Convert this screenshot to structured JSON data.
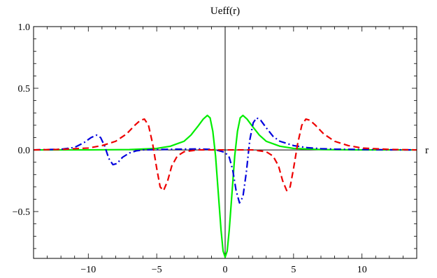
{
  "chart_data": {
    "type": "line",
    "title": "Ueff(r)",
    "xlabel": "r",
    "ylabel": "",
    "xlim": [
      -14,
      14
    ],
    "ylim": [
      -0.88,
      1.0
    ],
    "grid": false,
    "x_ticks": [
      {
        "value": -10,
        "label": "−10"
      },
      {
        "value": -5,
        "label": "−5"
      },
      {
        "value": 0,
        "label": "0"
      },
      {
        "value": 5,
        "label": "5"
      },
      {
        "value": 10,
        "label": "10"
      }
    ],
    "y_ticks": [
      {
        "value": -0.5,
        "label": "−0.5"
      },
      {
        "value": 0.0,
        "label": "0.0"
      },
      {
        "value": 0.5,
        "label": "0.5"
      },
      {
        "value": 1.0,
        "label": "1.0"
      }
    ],
    "series": [
      {
        "color": "#00ee00",
        "dash": "solid",
        "points": [
          [
            -14,
            0.0
          ],
          [
            -10,
            0.0
          ],
          [
            -7,
            0.003
          ],
          [
            -5,
            0.012
          ],
          [
            -4,
            0.03
          ],
          [
            -3,
            0.07
          ],
          [
            -2.5,
            0.12
          ],
          [
            -2,
            0.19
          ],
          [
            -1.6,
            0.25
          ],
          [
            -1.3,
            0.28
          ],
          [
            -1.1,
            0.26
          ],
          [
            -0.9,
            0.15
          ],
          [
            -0.7,
            -0.05
          ],
          [
            -0.5,
            -0.35
          ],
          [
            -0.3,
            -0.65
          ],
          [
            -0.15,
            -0.82
          ],
          [
            0,
            -0.87
          ],
          [
            0.15,
            -0.82
          ],
          [
            0.3,
            -0.65
          ],
          [
            0.5,
            -0.35
          ],
          [
            0.7,
            -0.05
          ],
          [
            0.9,
            0.15
          ],
          [
            1.1,
            0.26
          ],
          [
            1.3,
            0.28
          ],
          [
            1.6,
            0.25
          ],
          [
            2,
            0.19
          ],
          [
            2.5,
            0.12
          ],
          [
            3,
            0.07
          ],
          [
            4,
            0.03
          ],
          [
            5,
            0.012
          ],
          [
            7,
            0.003
          ],
          [
            10,
            0.0
          ],
          [
            14,
            0.0
          ]
        ]
      },
      {
        "color": "#0000dd",
        "dash": "dashdot",
        "points": [
          [
            -14,
            0.0
          ],
          [
            -12,
            0.005
          ],
          [
            -11,
            0.02
          ],
          [
            -10.3,
            0.06
          ],
          [
            -9.8,
            0.1
          ],
          [
            -9.4,
            0.12
          ],
          [
            -9.1,
            0.1
          ],
          [
            -8.8,
            0.03
          ],
          [
            -8.5,
            -0.07
          ],
          [
            -8.2,
            -0.12
          ],
          [
            -7.9,
            -0.11
          ],
          [
            -7.5,
            -0.06
          ],
          [
            -7,
            -0.025
          ],
          [
            -6.5,
            -0.008
          ],
          [
            -6,
            0.0
          ],
          [
            -4,
            0.005
          ],
          [
            -2,
            0.008
          ],
          [
            -1,
            0.004
          ],
          [
            -0.5,
            -0.005
          ],
          [
            0,
            -0.02
          ],
          [
            0.3,
            -0.06
          ],
          [
            0.55,
            -0.16
          ],
          [
            0.8,
            -0.33
          ],
          [
            1.05,
            -0.43
          ],
          [
            1.3,
            -0.38
          ],
          [
            1.55,
            -0.18
          ],
          [
            1.8,
            0.08
          ],
          [
            2.05,
            0.22
          ],
          [
            2.3,
            0.26
          ],
          [
            2.6,
            0.24
          ],
          [
            3,
            0.18
          ],
          [
            3.5,
            0.11
          ],
          [
            4,
            0.07
          ],
          [
            5,
            0.035
          ],
          [
            6,
            0.018
          ],
          [
            7,
            0.01
          ],
          [
            8,
            0.006
          ],
          [
            10,
            0.003
          ],
          [
            12,
            0.001
          ],
          [
            14,
            0.0
          ]
        ]
      },
      {
        "color": "#ee0000",
        "dash": "dashed",
        "points": [
          [
            -14,
            0.0
          ],
          [
            -12,
            0.004
          ],
          [
            -10,
            0.015
          ],
          [
            -9,
            0.035
          ],
          [
            -8,
            0.07
          ],
          [
            -7.2,
            0.13
          ],
          [
            -6.6,
            0.2
          ],
          [
            -6.2,
            0.24
          ],
          [
            -5.9,
            0.25
          ],
          [
            -5.6,
            0.2
          ],
          [
            -5.3,
            0.05
          ],
          [
            -5.0,
            -0.15
          ],
          [
            -4.75,
            -0.3
          ],
          [
            -4.5,
            -0.33
          ],
          [
            -4.2,
            -0.25
          ],
          [
            -3.9,
            -0.13
          ],
          [
            -3.5,
            -0.05
          ],
          [
            -3,
            -0.015
          ],
          [
            -2,
            0.0
          ],
          [
            0,
            0.0
          ],
          [
            2,
            0.0
          ],
          [
            3,
            -0.015
          ],
          [
            3.5,
            -0.05
          ],
          [
            3.9,
            -0.13
          ],
          [
            4.2,
            -0.25
          ],
          [
            4.5,
            -0.33
          ],
          [
            4.75,
            -0.3
          ],
          [
            5.0,
            -0.15
          ],
          [
            5.3,
            0.05
          ],
          [
            5.6,
            0.2
          ],
          [
            5.9,
            0.25
          ],
          [
            6.2,
            0.24
          ],
          [
            6.6,
            0.2
          ],
          [
            7.2,
            0.13
          ],
          [
            8,
            0.07
          ],
          [
            9,
            0.035
          ],
          [
            10,
            0.015
          ],
          [
            12,
            0.004
          ],
          [
            14,
            0.0
          ]
        ]
      }
    ]
  }
}
